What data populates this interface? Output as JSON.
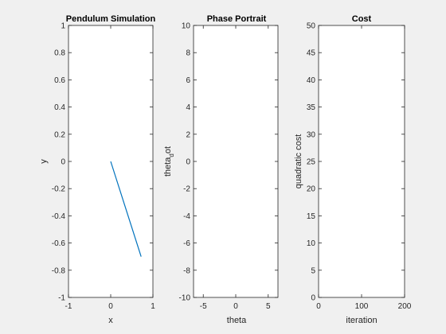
{
  "colors": {
    "figure_bg": "#f0f0f0",
    "axes_bg": "#ffffff",
    "axes_line": "#262626",
    "line": "#0072bd"
  },
  "chart_data": [
    {
      "type": "line",
      "title": "Pendulum Simulation",
      "xlabel": "x",
      "ylabel": "y",
      "xlim": [
        -1,
        1
      ],
      "ylim": [
        -1,
        1
      ],
      "xticks": [
        -1,
        0,
        1
      ],
      "yticks": [
        -1,
        -0.8,
        -0.6,
        -0.4,
        -0.2,
        0,
        0.2,
        0.4,
        0.6,
        0.8,
        1
      ],
      "grid": false,
      "series": [
        {
          "x": [
            0,
            0.72
          ],
          "y": [
            0,
            -0.7
          ]
        }
      ]
    },
    {
      "type": "line",
      "title": "Phase Portrait",
      "xlabel": "theta",
      "ylabel": "theta_dot",
      "ylabel_main": "theta",
      "ylabel_sub": "d",
      "ylabel_tail": "ot",
      "xlim": [
        -6.5,
        6.5
      ],
      "ylim": [
        -10,
        10
      ],
      "xticks": [
        -5,
        0,
        5
      ],
      "yticks": [
        -10,
        -8,
        -6,
        -4,
        -2,
        0,
        2,
        4,
        6,
        8,
        10
      ],
      "grid": false,
      "series": []
    },
    {
      "type": "line",
      "title": "Cost",
      "xlabel": "iteration",
      "ylabel": "quadratic cost",
      "xlim": [
        0,
        200
      ],
      "ylim": [
        0,
        50
      ],
      "xticks": [
        0,
        100,
        200
      ],
      "yticks": [
        0,
        5,
        10,
        15,
        20,
        25,
        30,
        35,
        40,
        45,
        50
      ],
      "grid": false,
      "series": []
    }
  ]
}
